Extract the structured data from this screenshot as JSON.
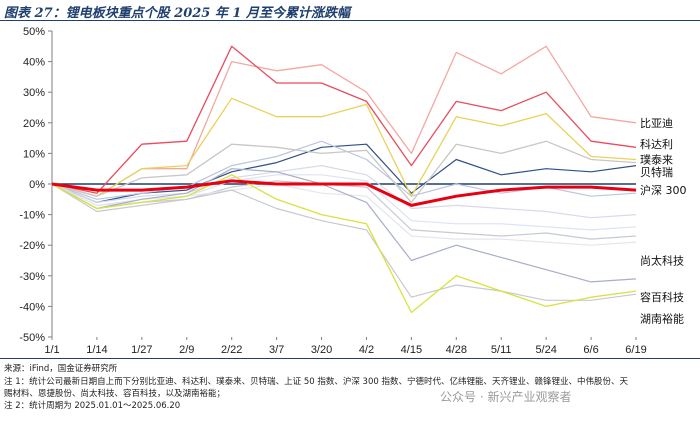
{
  "header": {
    "title": "图表 27：锂电板块重点个股 2025 年 1 月至今累计涨跌幅"
  },
  "footer": {
    "source": "来源：iFind，国金证券研究所",
    "note1a": "注 1：统计公司最新日期自上而下分别比亚迪、科达利、璞泰来、贝特瑞、上证 50 指数、沪深 300 指数、宁德时代、亿纬锂能、天齐锂业、赣锋锂业、中伟股份、天",
    "note1b": "赐材料、恩捷股份、尚太科技、容百科技，以及湖南裕能；",
    "note2": "注 2：统计周期为 2025.01.01～2025.06.20"
  },
  "watermark": "公众号 · 新兴产业观察者",
  "chart_data": {
    "type": "line",
    "x": [
      "1/1",
      "1/14",
      "1/27",
      "2/9",
      "2/22",
      "3/7",
      "3/20",
      "4/2",
      "4/15",
      "4/28",
      "5/11",
      "5/24",
      "6/6",
      "6/19"
    ],
    "ylim": [
      -50,
      50
    ],
    "yticks": [
      "50%",
      "40%",
      "30%",
      "20%",
      "10%",
      "0%",
      "-10%",
      "-20%",
      "-30%",
      "-40%",
      "-50%"
    ],
    "ytick_values": [
      50,
      40,
      30,
      20,
      10,
      0,
      -10,
      -20,
      -30,
      -40,
      -50
    ],
    "grid": false,
    "zero_line": true,
    "series": [
      {
        "name": "比亚迪",
        "color": "#f2a7a2",
        "width": 1.3,
        "values": [
          0,
          -4,
          5,
          5,
          40,
          37,
          39,
          30,
          10,
          43,
          36,
          45,
          22,
          20
        ]
      },
      {
        "name": "科达利",
        "color": "#e84c5e",
        "width": 1.3,
        "values": [
          0,
          -3,
          13,
          14,
          45,
          33,
          33,
          27,
          6,
          27,
          24,
          30,
          14,
          12
        ]
      },
      {
        "name": "璞泰来",
        "color": "#e8d25a",
        "width": 1.3,
        "values": [
          0,
          -4,
          5,
          6,
          28,
          22,
          22,
          26,
          -4,
          22,
          19,
          23,
          9,
          8
        ]
      },
      {
        "name": "贝特瑞",
        "color": "#c9c7c4",
        "width": 1.3,
        "values": [
          0,
          -4,
          2,
          3,
          13,
          12,
          10,
          11,
          -6,
          13,
          10,
          14,
          8,
          7
        ]
      },
      {
        "name": "沪深 300",
        "color": "#e60012",
        "width": 3,
        "values": [
          0,
          -2,
          -2,
          -1,
          1,
          0,
          0,
          0,
          -7,
          -4,
          -2,
          -1,
          -1,
          -2
        ]
      },
      {
        "name": "",
        "color": "#2f4f8a",
        "width": 1.2,
        "values": [
          0,
          -6,
          -3,
          -2,
          4,
          7,
          12,
          13,
          -3,
          8,
          3,
          5,
          4,
          6
        ]
      },
      {
        "name": "",
        "color": "#b9c6df",
        "width": 1.2,
        "values": [
          0,
          -5,
          -3,
          -1,
          6,
          9,
          14,
          8,
          -4,
          0,
          -3,
          -1,
          -4,
          -3
        ]
      },
      {
        "name": "",
        "color": "#d9d9e8",
        "width": 1.2,
        "values": [
          0,
          -6,
          -4,
          -3,
          2,
          4,
          6,
          3,
          -8,
          -7,
          -8,
          -9,
          -11,
          -10
        ]
      },
      {
        "name": "",
        "color": "#dbe3f4",
        "width": 1.2,
        "values": [
          0,
          -7,
          -5,
          -4,
          1,
          3,
          3,
          1,
          -12,
          -13,
          -13,
          -14,
          -15,
          -14
        ]
      },
      {
        "name": "",
        "color": "#c8c9d3",
        "width": 1.2,
        "values": [
          0,
          -8,
          -6,
          -5,
          -1,
          1,
          0,
          -1,
          -15,
          -16,
          -17,
          -16,
          -18,
          -17
        ]
      },
      {
        "name": "",
        "color": "#e5e5ee",
        "width": 1.2,
        "values": [
          0,
          -7,
          -6,
          -4,
          -2,
          0,
          -3,
          -4,
          -17,
          -18,
          -18,
          -19,
          -20,
          -19
        ]
      },
      {
        "name": "尚太科技",
        "color": "#a7aec8",
        "width": 1.2,
        "values": [
          0,
          -8,
          -5,
          -3,
          5,
          4,
          0,
          -6,
          -25,
          -20,
          -24,
          -28,
          -32,
          -31
        ]
      },
      {
        "name": "容百科技",
        "color": "#c7c9d1",
        "width": 1.2,
        "values": [
          0,
          -9,
          -7,
          -5,
          -2,
          -8,
          -12,
          -15,
          -37,
          -33,
          -35,
          -38,
          -38,
          -36
        ]
      },
      {
        "name": "湖南裕能",
        "color": "#d9e23c",
        "width": 1.3,
        "values": [
          0,
          -8,
          -6,
          -4,
          3,
          -5,
          -10,
          -13,
          -42,
          -30,
          -35,
          -40,
          -37,
          -35
        ]
      }
    ],
    "labels": [
      {
        "text": "比亚迪",
        "anchor": 20
      },
      {
        "text": "科达利",
        "anchor": 13
      },
      {
        "text": "璞泰来",
        "anchor": 8
      },
      {
        "text": "贝特瑞",
        "anchor": 4
      },
      {
        "text": "沪深 300",
        "anchor": -2
      },
      {
        "text": "尚太科技",
        "anchor": -25
      },
      {
        "text": "容百科技",
        "anchor": -37
      },
      {
        "text": "湖南裕能",
        "anchor": -44
      }
    ]
  }
}
